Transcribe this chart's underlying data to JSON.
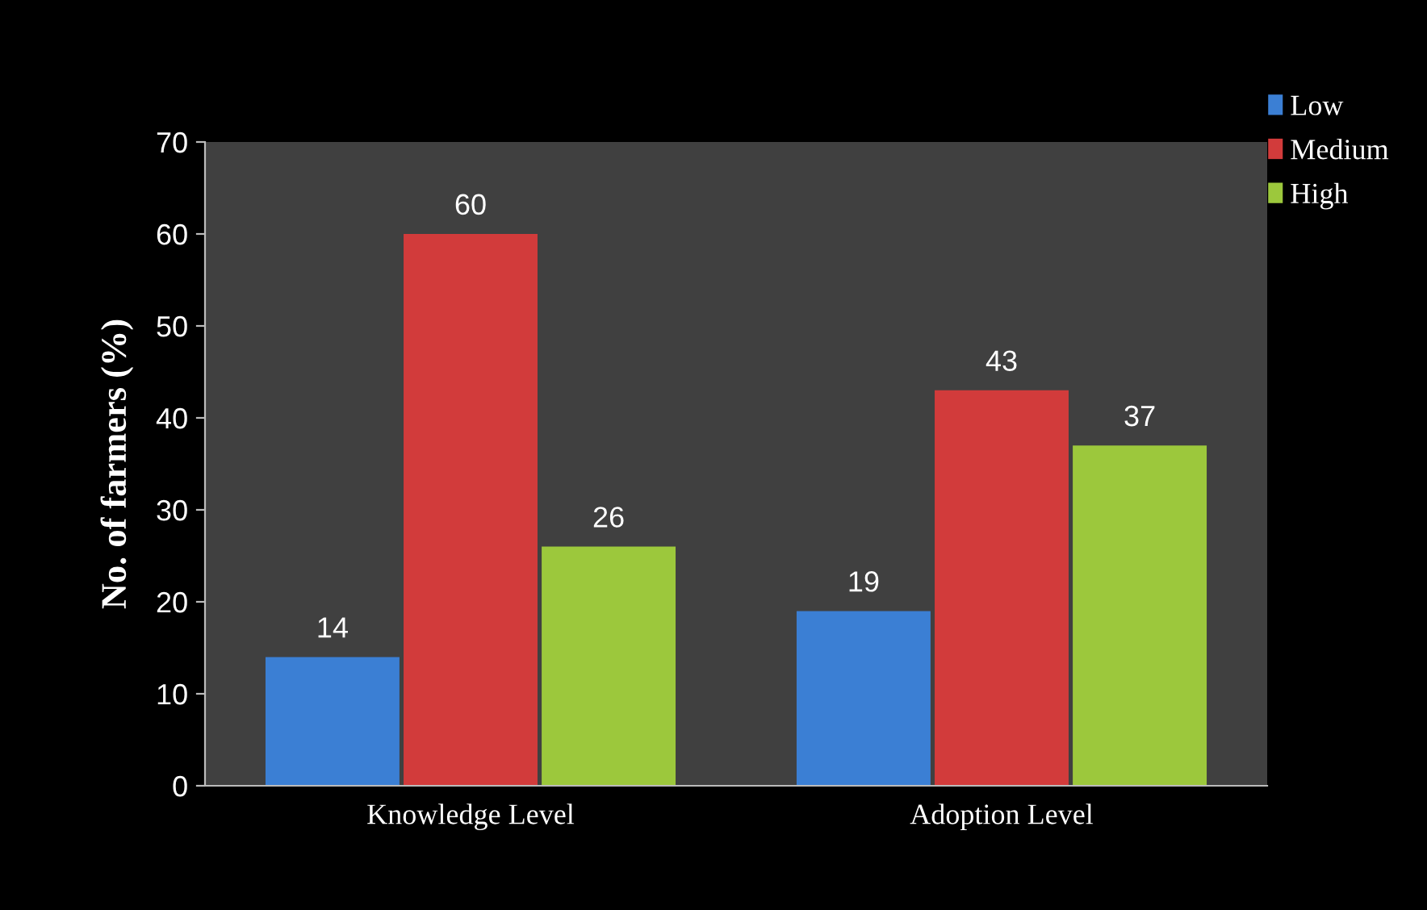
{
  "chart_data": {
    "type": "bar",
    "ylabel": "No. of farmers (%)",
    "categories": [
      "Knowledge Level",
      "Adoption Level"
    ],
    "series": [
      {
        "name": "Low",
        "color": "#3b7fd4",
        "values": [
          14,
          19
        ]
      },
      {
        "name": "Medium",
        "color": "#d23b3b",
        "values": [
          60,
          43
        ]
      },
      {
        "name": "High",
        "color": "#9cc83c",
        "values": [
          26,
          37
        ]
      }
    ],
    "ylim": [
      0,
      70
    ],
    "yticks": [
      0,
      10,
      20,
      30,
      40,
      50,
      60,
      70
    ],
    "data_labels": true,
    "legend": "top right",
    "grid": false
  }
}
